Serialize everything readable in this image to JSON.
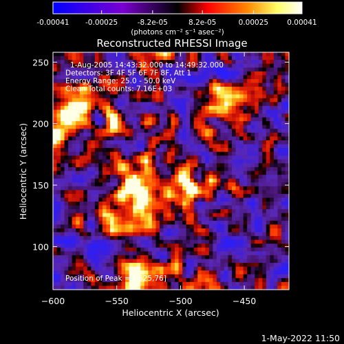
{
  "chart_data": {
    "type": "heatmap",
    "title": "Reconstructed RHESSI Image",
    "xlabel": "Heliocentric X (arcsec)",
    "ylabel": "Heliocentric Y (arcsec)",
    "xlim": [
      -600,
      -415
    ],
    "ylim": [
      65,
      258
    ],
    "x_ticks": [
      "−600",
      "−550",
      "−500",
      "−450"
    ],
    "x_tick_values": [
      -600,
      -550,
      -500,
      -450
    ],
    "y_ticks": [
      "250",
      "200",
      "150",
      "100"
    ],
    "y_tick_values": [
      250,
      200,
      150,
      100
    ],
    "colorbar": {
      "min": -0.00041,
      "max": 0.00041,
      "ticks": [
        "-0.00041",
        "-0.00025",
        "-8.2e-05",
        "8.2e-05",
        "0.00025",
        "0.00041"
      ],
      "tick_values": [
        -0.00041,
        -0.00025,
        -8.2e-05,
        8.2e-05,
        0.00025,
        0.00041
      ],
      "unit_label": "(photons cm⁻² s⁻¹ asec⁻²)",
      "colormap": [
        "#0000ff",
        "#6600cc",
        "#000000",
        "#ff0000",
        "#ff8800",
        "#ffff80",
        "#ffffff"
      ]
    },
    "annotations": [
      "1-Aug-2005 14:43:32.000 to 14:49:32.000",
      "Detectors: 3F 4F 5F 6F 7F 8F, Att 1",
      "Energy Range: 25.0 - 50.0 keV",
      "Clean     Total counts: 7.16E+03"
    ],
    "peak_label": "Position of Peak = [-525,76]",
    "peak": {
      "x": -525,
      "y": 76
    },
    "hotspots": [
      {
        "x": -525,
        "y": 76,
        "level": 1.0
      },
      {
        "x": -530,
        "y": 155,
        "level": 0.85
      },
      {
        "x": -590,
        "y": 205,
        "level": 0.8
      },
      {
        "x": -545,
        "y": 125,
        "level": 0.7
      },
      {
        "x": -470,
        "y": 210,
        "level": 0.65
      },
      {
        "x": -480,
        "y": 150,
        "level": 0.55
      }
    ]
  },
  "footer": {
    "timestamp": "1-May-2022 11:50"
  }
}
